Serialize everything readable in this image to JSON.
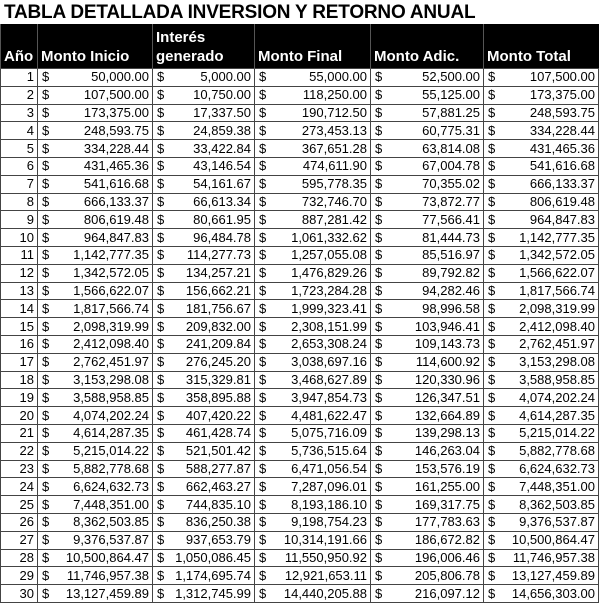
{
  "title": "TABLA DETALLADA INVERSION Y RETORNO ANUAL",
  "headers": [
    "Año",
    "Monto Inicio",
    "Interés generado",
    "Monto Final",
    "Monto Adic.",
    "Monto Total"
  ],
  "currency_symbol": "$",
  "rows": [
    [
      "1",
      "50,000.00",
      "5,000.00",
      "55,000.00",
      "52,500.00",
      "107,500.00"
    ],
    [
      "2",
      "107,500.00",
      "10,750.00",
      "118,250.00",
      "55,125.00",
      "173,375.00"
    ],
    [
      "3",
      "173,375.00",
      "17,337.50",
      "190,712.50",
      "57,881.25",
      "248,593.75"
    ],
    [
      "4",
      "248,593.75",
      "24,859.38",
      "273,453.13",
      "60,775.31",
      "334,228.44"
    ],
    [
      "5",
      "334,228.44",
      "33,422.84",
      "367,651.28",
      "63,814.08",
      "431,465.36"
    ],
    [
      "6",
      "431,465.36",
      "43,146.54",
      "474,611.90",
      "67,004.78",
      "541,616.68"
    ],
    [
      "7",
      "541,616.68",
      "54,161.67",
      "595,778.35",
      "70,355.02",
      "666,133.37"
    ],
    [
      "8",
      "666,133.37",
      "66,613.34",
      "732,746.70",
      "73,872.77",
      "806,619.48"
    ],
    [
      "9",
      "806,619.48",
      "80,661.95",
      "887,281.42",
      "77,566.41",
      "964,847.83"
    ],
    [
      "10",
      "964,847.83",
      "96,484.78",
      "1,061,332.62",
      "81,444.73",
      "1,142,777.35"
    ],
    [
      "11",
      "1,142,777.35",
      "114,277.73",
      "1,257,055.08",
      "85,516.97",
      "1,342,572.05"
    ],
    [
      "12",
      "1,342,572.05",
      "134,257.21",
      "1,476,829.26",
      "89,792.82",
      "1,566,622.07"
    ],
    [
      "13",
      "1,566,622.07",
      "156,662.21",
      "1,723,284.28",
      "94,282.46",
      "1,817,566.74"
    ],
    [
      "14",
      "1,817,566.74",
      "181,756.67",
      "1,999,323.41",
      "98,996.58",
      "2,098,319.99"
    ],
    [
      "15",
      "2,098,319.99",
      "209,832.00",
      "2,308,151.99",
      "103,946.41",
      "2,412,098.40"
    ],
    [
      "16",
      "2,412,098.40",
      "241,209.84",
      "2,653,308.24",
      "109,143.73",
      "2,762,451.97"
    ],
    [
      "17",
      "2,762,451.97",
      "276,245.20",
      "3,038,697.16",
      "114,600.92",
      "3,153,298.08"
    ],
    [
      "18",
      "3,153,298.08",
      "315,329.81",
      "3,468,627.89",
      "120,330.96",
      "3,588,958.85"
    ],
    [
      "19",
      "3,588,958.85",
      "358,895.88",
      "3,947,854.73",
      "126,347.51",
      "4,074,202.24"
    ],
    [
      "20",
      "4,074,202.24",
      "407,420.22",
      "4,481,622.47",
      "132,664.89",
      "4,614,287.35"
    ],
    [
      "21",
      "4,614,287.35",
      "461,428.74",
      "5,075,716.09",
      "139,298.13",
      "5,215,014.22"
    ],
    [
      "22",
      "5,215,014.22",
      "521,501.42",
      "5,736,515.64",
      "146,263.04",
      "5,882,778.68"
    ],
    [
      "23",
      "5,882,778.68",
      "588,277.87",
      "6,471,056.54",
      "153,576.19",
      "6,624,632.73"
    ],
    [
      "24",
      "6,624,632.73",
      "662,463.27",
      "7,287,096.01",
      "161,255.00",
      "7,448,351.00"
    ],
    [
      "25",
      "7,448,351.00",
      "744,835.10",
      "8,193,186.10",
      "169,317.75",
      "8,362,503.85"
    ],
    [
      "26",
      "8,362,503.85",
      "836,250.38",
      "9,198,754.23",
      "177,783.63",
      "9,376,537.87"
    ],
    [
      "27",
      "9,376,537.87",
      "937,653.79",
      "10,314,191.66",
      "186,672.82",
      "10,500,864.47"
    ],
    [
      "28",
      "10,500,864.47",
      "1,050,086.45",
      "11,550,950.92",
      "196,006.46",
      "11,746,957.38"
    ],
    [
      "29",
      "11,746,957.38",
      "1,174,695.74",
      "12,921,653.11",
      "205,806.78",
      "13,127,459.89"
    ],
    [
      "30",
      "13,127,459.89",
      "1,312,745.99",
      "14,440,205.88",
      "216,097.12",
      "14,656,303.00"
    ]
  ]
}
